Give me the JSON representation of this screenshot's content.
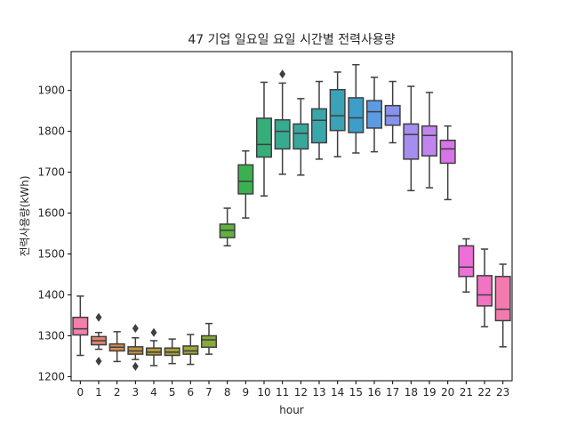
{
  "chart_data": {
    "type": "box",
    "title": "47 기업 일요일 요일 시간별 전력사용량",
    "xlabel": "hour",
    "ylabel": "전력사용량(kWh)",
    "ylim": [
      1190,
      1995
    ],
    "yticks": [
      1200,
      1300,
      1400,
      1500,
      1600,
      1700,
      1800,
      1900
    ],
    "categories": [
      "0",
      "1",
      "2",
      "3",
      "4",
      "5",
      "6",
      "7",
      "8",
      "9",
      "10",
      "11",
      "12",
      "13",
      "14",
      "15",
      "16",
      "17",
      "18",
      "19",
      "20",
      "21",
      "22",
      "23"
    ],
    "boxes": [
      {
        "min": 1252,
        "q1": 1302,
        "median": 1317,
        "q3": 1345,
        "max": 1397,
        "outliers": [],
        "color": "#f37fab"
      },
      {
        "min": 1267,
        "q1": 1278,
        "median": 1288,
        "q3": 1298,
        "max": 1308,
        "outliers": [
          1345,
          1238
        ],
        "color": "#e2846f"
      },
      {
        "min": 1237,
        "q1": 1263,
        "median": 1272,
        "q3": 1280,
        "max": 1310,
        "outliers": [],
        "color": "#d48c4f"
      },
      {
        "min": 1242,
        "q1": 1255,
        "median": 1263,
        "q3": 1273,
        "max": 1295,
        "outliers": [
          1318,
          1225
        ],
        "color": "#c4923c"
      },
      {
        "min": 1227,
        "q1": 1253,
        "median": 1260,
        "q3": 1270,
        "max": 1288,
        "outliers": [
          1308
        ],
        "color": "#b39a35"
      },
      {
        "min": 1232,
        "q1": 1252,
        "median": 1260,
        "q3": 1270,
        "max": 1292,
        "outliers": [],
        "color": "#a79f38"
      },
      {
        "min": 1230,
        "q1": 1255,
        "median": 1263,
        "q3": 1275,
        "max": 1303,
        "outliers": [],
        "color": "#99a43b"
      },
      {
        "min": 1255,
        "q1": 1272,
        "median": 1290,
        "q3": 1300,
        "max": 1330,
        "outliers": [],
        "color": "#87aa3b"
      },
      {
        "min": 1520,
        "q1": 1540,
        "median": 1558,
        "q3": 1573,
        "max": 1612,
        "outliers": [],
        "color": "#5eb13d"
      },
      {
        "min": 1588,
        "q1": 1647,
        "median": 1678,
        "q3": 1718,
        "max": 1752,
        "outliers": [],
        "color": "#3bb050"
      },
      {
        "min": 1642,
        "q1": 1737,
        "median": 1768,
        "q3": 1832,
        "max": 1920,
        "outliers": [],
        "color": "#36ae78"
      },
      {
        "min": 1695,
        "q1": 1757,
        "median": 1800,
        "q3": 1828,
        "max": 1918,
        "outliers": [
          1940
        ],
        "color": "#37ab8f"
      },
      {
        "min": 1693,
        "q1": 1757,
        "median": 1795,
        "q3": 1818,
        "max": 1880,
        "outliers": [],
        "color": "#38a89d"
      },
      {
        "min": 1732,
        "q1": 1772,
        "median": 1827,
        "q3": 1855,
        "max": 1922,
        "outliers": [],
        "color": "#39a6aa"
      },
      {
        "min": 1738,
        "q1": 1802,
        "median": 1838,
        "q3": 1902,
        "max": 1945,
        "outliers": [],
        "color": "#3ba3b8"
      },
      {
        "min": 1747,
        "q1": 1797,
        "median": 1833,
        "q3": 1882,
        "max": 1963,
        "outliers": [],
        "color": "#3d9ec9"
      },
      {
        "min": 1750,
        "q1": 1808,
        "median": 1848,
        "q3": 1875,
        "max": 1932,
        "outliers": [],
        "color": "#5c9be2"
      },
      {
        "min": 1772,
        "q1": 1815,
        "median": 1838,
        "q3": 1863,
        "max": 1922,
        "outliers": [],
        "color": "#8792ec"
      },
      {
        "min": 1655,
        "q1": 1732,
        "median": 1792,
        "q3": 1818,
        "max": 1910,
        "outliers": [],
        "color": "#a68df0"
      },
      {
        "min": 1662,
        "q1": 1740,
        "median": 1790,
        "q3": 1813,
        "max": 1895,
        "outliers": [],
        "color": "#c285f0"
      },
      {
        "min": 1633,
        "q1": 1722,
        "median": 1757,
        "q3": 1778,
        "max": 1813,
        "outliers": [],
        "color": "#d974e8"
      },
      {
        "min": 1407,
        "q1": 1445,
        "median": 1468,
        "q3": 1520,
        "max": 1537,
        "outliers": [],
        "color": "#ec70d7"
      },
      {
        "min": 1322,
        "q1": 1373,
        "median": 1400,
        "q3": 1447,
        "max": 1512,
        "outliers": [],
        "color": "#f173c2"
      },
      {
        "min": 1273,
        "q1": 1337,
        "median": 1365,
        "q3": 1445,
        "max": 1475,
        "outliers": [],
        "color": "#f37aaf"
      }
    ],
    "grid": false,
    "line_color": "#3f3f3f"
  }
}
